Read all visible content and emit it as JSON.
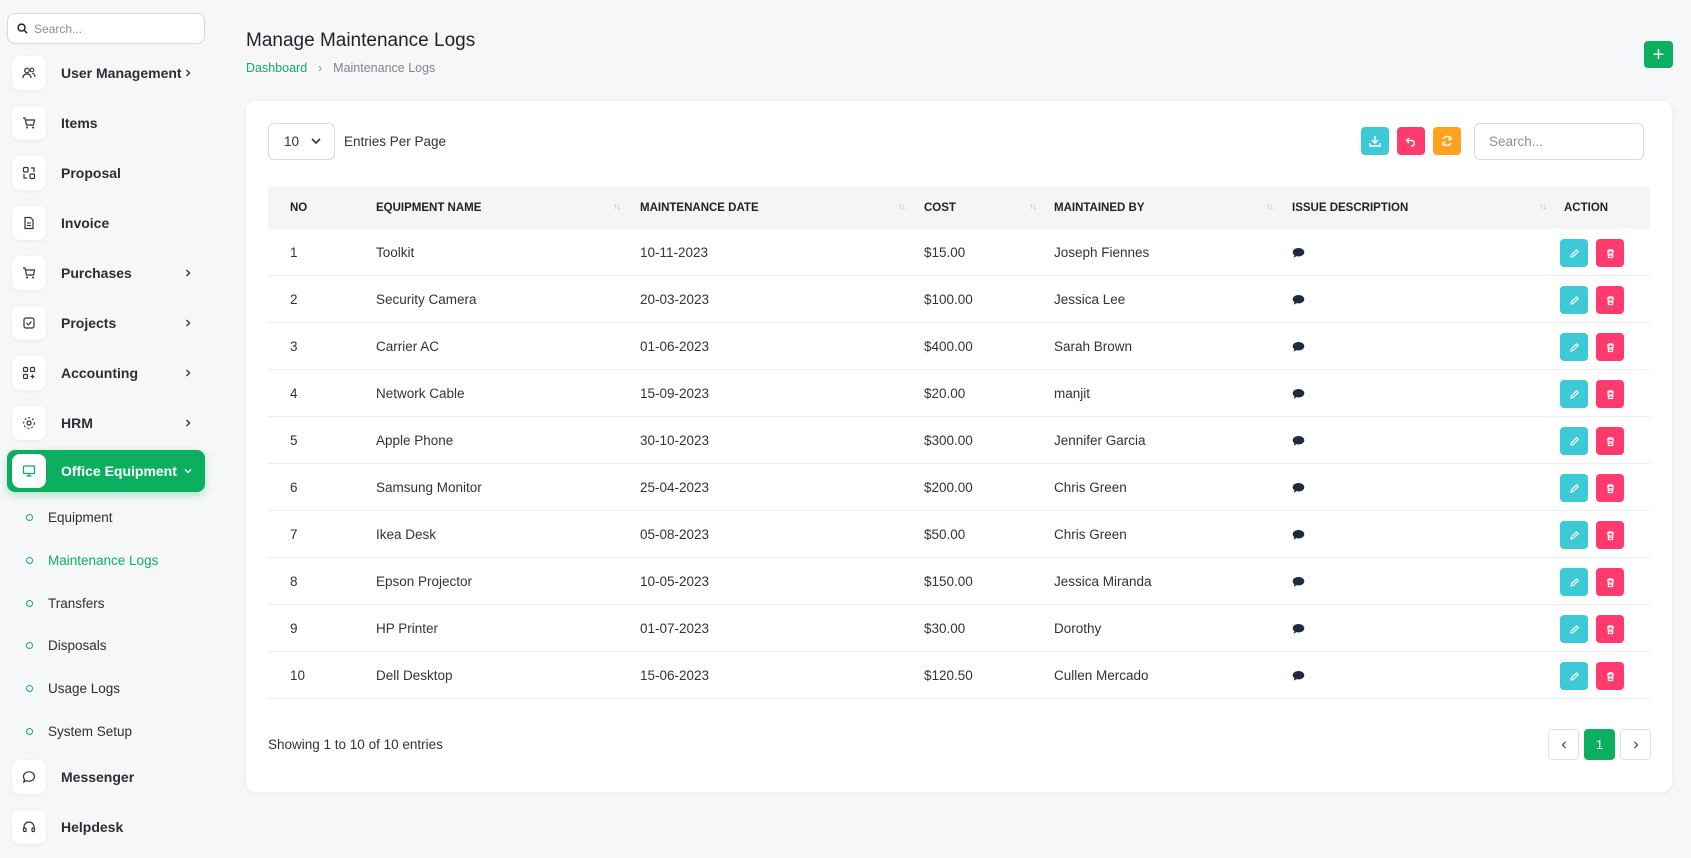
{
  "sidebar": {
    "search_placeholder": "Search...",
    "items": [
      {
        "label": "User Management",
        "icon": "users-icon",
        "has_children": true
      },
      {
        "label": "Items",
        "icon": "cart-icon",
        "has_children": false
      },
      {
        "label": "Proposal",
        "icon": "proposal-icon",
        "has_children": false
      },
      {
        "label": "Invoice",
        "icon": "invoice-icon",
        "has_children": false
      },
      {
        "label": "Purchases",
        "icon": "cart-icon",
        "has_children": true
      },
      {
        "label": "Projects",
        "icon": "checkbox-icon",
        "has_children": true
      },
      {
        "label": "Accounting",
        "icon": "grid-plus-icon",
        "has_children": true
      },
      {
        "label": "HRM",
        "icon": "hrm-icon",
        "has_children": true
      },
      {
        "label": "Office Equipment",
        "icon": "monitor-icon",
        "has_children": true,
        "active": true
      },
      {
        "label": "Messenger",
        "icon": "message-icon",
        "has_children": false
      },
      {
        "label": "Helpdesk",
        "icon": "headset-icon",
        "has_children": false
      }
    ],
    "sub_items": [
      {
        "label": "Equipment"
      },
      {
        "label": "Maintenance Logs",
        "active": true
      },
      {
        "label": "Transfers"
      },
      {
        "label": "Disposals"
      },
      {
        "label": "Usage Logs"
      },
      {
        "label": "System Setup"
      }
    ]
  },
  "header": {
    "title": "Manage Maintenance Logs",
    "breadcrumb": {
      "home": "Dashboard",
      "current": "Maintenance Logs"
    },
    "add_label": "+"
  },
  "toolbar": {
    "entries_value": "10",
    "entries_label": "Entries Per Page",
    "search_placeholder": "Search...",
    "colors": {
      "export": "#3ec9d6",
      "reset": "#ff3a6e",
      "refresh": "#ffa21d",
      "accent": "#0caf60"
    }
  },
  "table": {
    "columns": [
      "NO",
      "EQUIPMENT NAME",
      "MAINTENANCE DATE",
      "COST",
      "MAINTAINED BY",
      "ISSUE DESCRIPTION",
      "ACTION"
    ],
    "rows": [
      {
        "no": "1",
        "equipment": "Toolkit",
        "date": "10-11-2023",
        "cost": "$15.00",
        "by": "Joseph Fiennes"
      },
      {
        "no": "2",
        "equipment": "Security Camera",
        "date": "20-03-2023",
        "cost": "$100.00",
        "by": "Jessica Lee"
      },
      {
        "no": "3",
        "equipment": "Carrier AC",
        "date": "01-06-2023",
        "cost": "$400.00",
        "by": "Sarah Brown"
      },
      {
        "no": "4",
        "equipment": "Network Cable",
        "date": "15-09-2023",
        "cost": "$20.00",
        "by": "manjit"
      },
      {
        "no": "5",
        "equipment": "Apple Phone",
        "date": "30-10-2023",
        "cost": "$300.00",
        "by": "Jennifer Garcia"
      },
      {
        "no": "6",
        "equipment": "Samsung Monitor",
        "date": "25-04-2023",
        "cost": "$200.00",
        "by": "Chris Green"
      },
      {
        "no": "7",
        "equipment": "Ikea Desk",
        "date": "05-08-2023",
        "cost": "$50.00",
        "by": "Chris Green"
      },
      {
        "no": "8",
        "equipment": "Epson Projector",
        "date": "10-05-2023",
        "cost": "$150.00",
        "by": "Jessica Miranda"
      },
      {
        "no": "9",
        "equipment": "HP Printer",
        "date": "01-07-2023",
        "cost": "$30.00",
        "by": "Dorothy"
      },
      {
        "no": "10",
        "equipment": "Dell Desktop",
        "date": "15-06-2023",
        "cost": "$120.50",
        "by": "Cullen Mercado"
      }
    ]
  },
  "footer": {
    "showing": "Showing 1 to 10 of 10 entries",
    "current_page": "1"
  }
}
